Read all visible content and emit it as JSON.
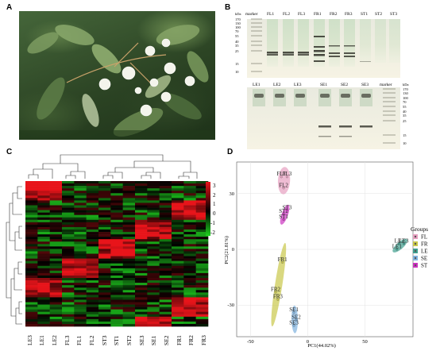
{
  "panels": {
    "a": {
      "letter": "A"
    },
    "b": {
      "letter": "B"
    },
    "c": {
      "letter": "C"
    },
    "d": {
      "letter": "D"
    }
  },
  "gel_top": {
    "unit": "kDa",
    "lanes": [
      "marker",
      "FL1",
      "FL2",
      "FL3",
      "FR1",
      "FR2",
      "FR3",
      "ST1",
      "ST2",
      "ST3"
    ],
    "ladder": [
      "170",
      "130",
      "100",
      "70",
      "55",
      "40",
      "35",
      "25",
      "15",
      "10"
    ]
  },
  "gel_bottom": {
    "unit": "kDa",
    "lanes": [
      "LE1",
      "LE2",
      "LE3",
      "SE1",
      "SE2",
      "SE3",
      "marker"
    ],
    "ladder": [
      "170",
      "130",
      "100",
      "70",
      "55",
      "40",
      "35",
      "25",
      "15",
      "10"
    ]
  },
  "heatmap": {
    "columns": [
      "LE3",
      "LE1",
      "LE2",
      "FL3",
      "FL1",
      "FL2",
      "ST3",
      "ST1",
      "ST2",
      "SE3",
      "SE1",
      "SE2",
      "FR1",
      "FR2",
      "FR3"
    ],
    "scale_ticks": [
      "3",
      "2",
      "1",
      "0",
      "-1",
      "-2"
    ],
    "colors": {
      "high": "#e8141a",
      "mid": "#000000",
      "low": "#1fd11f"
    }
  },
  "chart_data": {
    "type": "scatter",
    "xlabel": "PC1(44.02%)",
    "ylabel": "PC2(21.81%)",
    "xticks": [
      -50,
      0,
      50
    ],
    "yticks": [
      30,
      0,
      -30
    ],
    "xlim": [
      -62,
      92
    ],
    "ylim": [
      -47,
      47
    ],
    "legend_title": "Groups",
    "legend_position": "right",
    "series": [
      {
        "name": "FL",
        "color": "#e7a0c0",
        "labels": [
          "FL1",
          "FL3",
          "FL2"
        ],
        "x": [
          -23,
          -18,
          -21
        ],
        "y": [
          39,
          39,
          33
        ]
      },
      {
        "name": "FR",
        "color": "#c9c84a",
        "labels": [
          "FR1",
          "FR2",
          "FR3"
        ],
        "x": [
          -22,
          -28,
          -26
        ],
        "y": [
          -7,
          -23,
          -27
        ]
      },
      {
        "name": "LE",
        "color": "#3f9f8f",
        "labels": [
          "LE2",
          "LE3",
          "LE1"
        ],
        "x": [
          80,
          84,
          78
        ],
        "y": [
          3,
          3,
          0
        ]
      },
      {
        "name": "SE",
        "color": "#7fb2de",
        "labels": [
          "SE1",
          "SE2",
          "SE3"
        ],
        "x": [
          -12,
          -10,
          -12
        ],
        "y": [
          -34,
          -38,
          -41
        ]
      },
      {
        "name": "ST",
        "color": "#cc33c0",
        "labels": [
          "ST2",
          "ST3",
          "ST1"
        ],
        "x": [
          -21,
          -18,
          -21
        ],
        "y": [
          19,
          21,
          16
        ]
      }
    ]
  }
}
